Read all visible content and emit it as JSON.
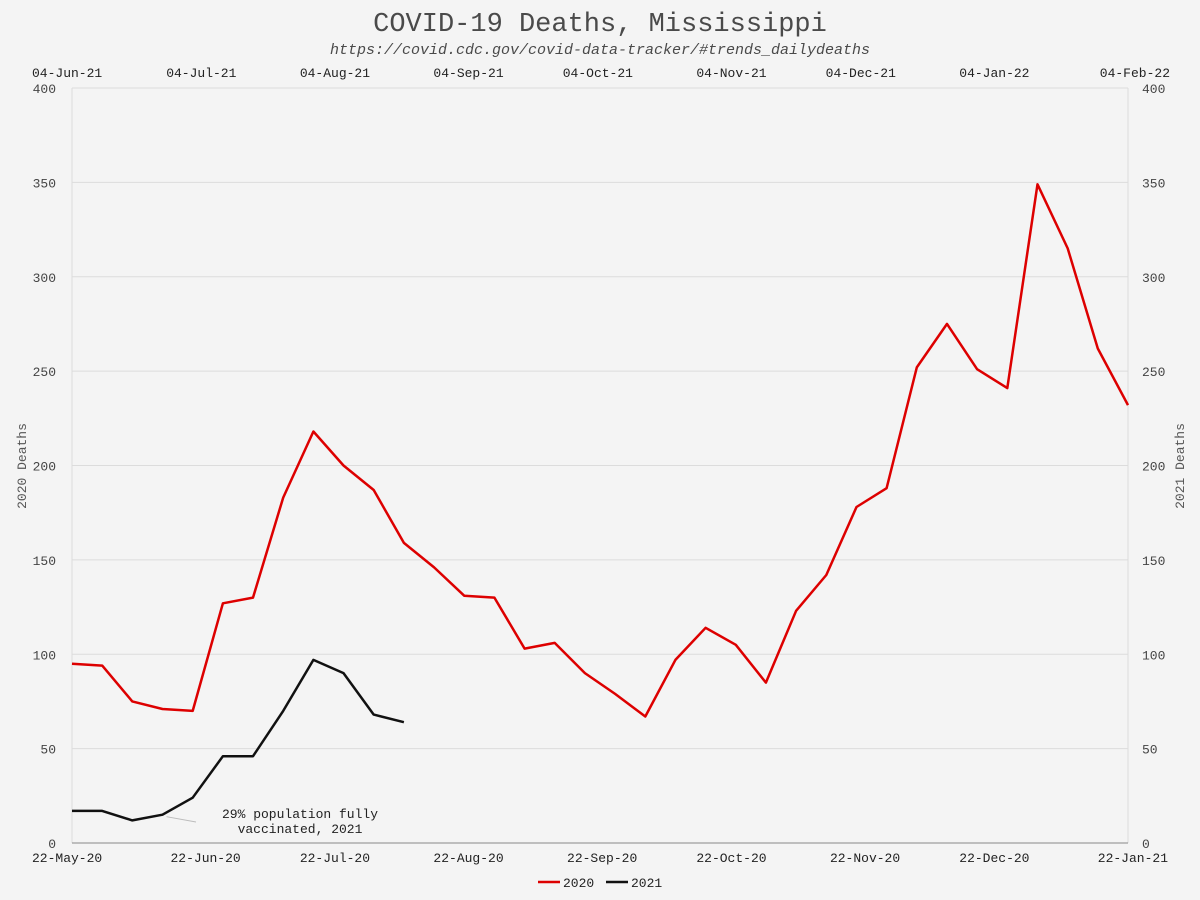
{
  "chart_data": {
    "type": "line",
    "title": "COVID-19 Deaths, Mississippi",
    "subtitle": "https://covid.cdc.gov/covid-data-tracker/#trends_dailydeaths",
    "ylabel_left": "2020 Deaths",
    "ylabel_right": "2021 Deaths",
    "ylim": [
      0,
      400
    ],
    "yticks": [
      0,
      50,
      100,
      150,
      200,
      250,
      300,
      350,
      400
    ],
    "grid": true,
    "legend_placement": "bottom-center",
    "x_bottom_ticks": [
      "22-May-20",
      "22-Jun-20",
      "22-Jul-20",
      "22-Aug-20",
      "22-Sep-20",
      "22-Oct-20",
      "22-Nov-20",
      "22-Dec-20",
      "22-Jan-21"
    ],
    "x_top_ticks": [
      "04-Jun-21",
      "04-Jul-21",
      "04-Aug-21",
      "04-Sep-21",
      "04-Oct-21",
      "04-Nov-21",
      "04-Dec-21",
      "04-Jan-22",
      "04-Feb-22"
    ],
    "series": [
      {
        "name": "2020",
        "color": "#dd0000",
        "axis": "bottom",
        "x": [
          "2020-05-22",
          "2020-05-29",
          "2020-06-05",
          "2020-06-12",
          "2020-06-19",
          "2020-06-26",
          "2020-07-03",
          "2020-07-10",
          "2020-07-17",
          "2020-07-24",
          "2020-07-31",
          "2020-08-07",
          "2020-08-14",
          "2020-08-21",
          "2020-08-28",
          "2020-09-04",
          "2020-09-11",
          "2020-09-18",
          "2020-09-25",
          "2020-10-02",
          "2020-10-09",
          "2020-10-16",
          "2020-10-23",
          "2020-10-30",
          "2020-11-06",
          "2020-11-13",
          "2020-11-20",
          "2020-11-27",
          "2020-12-04",
          "2020-12-11",
          "2020-12-18",
          "2020-12-25",
          "2021-01-01",
          "2021-01-08",
          "2021-01-15",
          "2021-01-22"
        ],
        "values": [
          95,
          94,
          75,
          71,
          70,
          127,
          130,
          183,
          218,
          200,
          187,
          159,
          146,
          131,
          130,
          103,
          106,
          90,
          79,
          67,
          97,
          114,
          105,
          85,
          123,
          142,
          178,
          188,
          252,
          275,
          251,
          241,
          349,
          315,
          262,
          232
        ]
      },
      {
        "name": "2021",
        "color": "#111111",
        "axis": "top",
        "x": [
          "2021-06-04",
          "2021-06-11",
          "2021-06-18",
          "2021-06-25",
          "2021-07-02",
          "2021-07-09",
          "2021-07-16",
          "2021-07-23",
          "2021-07-30",
          "2021-08-06",
          "2021-08-13",
          "2021-08-20"
        ],
        "values": [
          17,
          17,
          12,
          15,
          24,
          46,
          46,
          70,
          97,
          90,
          68,
          64
        ]
      }
    ],
    "annotation": {
      "line1": "29% population fully",
      "line2": "vaccinated, 2021",
      "series": "2021",
      "x": "2021-06-25",
      "y": 15
    }
  }
}
